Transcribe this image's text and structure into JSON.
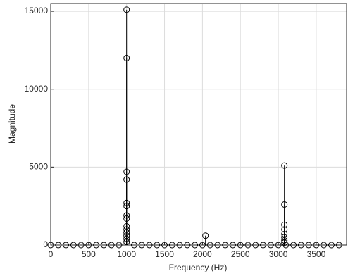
{
  "chart_data": {
    "type": "stem",
    "xlabel": "Frequency (Hz)",
    "ylabel": "Magnitude",
    "x": [
      0,
      100,
      200,
      300,
      400,
      500,
      600,
      700,
      800,
      900,
      1000,
      1000,
      1000,
      1000,
      1000,
      1000,
      1000,
      1000,
      1000,
      1000,
      1000,
      1000,
      1000,
      1000,
      1100,
      1200,
      1300,
      1400,
      1500,
      1600,
      1700,
      1800,
      1900,
      2000,
      2040,
      2100,
      2200,
      2300,
      2400,
      2500,
      2600,
      2700,
      2800,
      2900,
      3000,
      3080,
      3080,
      3080,
      3080,
      3080,
      3080,
      3080,
      3080,
      3100,
      3200,
      3300,
      3400,
      3500,
      3600,
      3700,
      3800
    ],
    "values": [
      0,
      0,
      0,
      0,
      0,
      0,
      0,
      0,
      0,
      0,
      15100,
      12000,
      4700,
      4200,
      2700,
      2500,
      1900,
      1700,
      1200,
      1000,
      800,
      600,
      400,
      200,
      0,
      0,
      0,
      0,
      0,
      0,
      0,
      0,
      0,
      0,
      600,
      0,
      0,
      0,
      0,
      0,
      0,
      0,
      0,
      0,
      0,
      5100,
      2600,
      1300,
      1000,
      700,
      500,
      300,
      150,
      0,
      0,
      0,
      0,
      0,
      0,
      0,
      0
    ],
    "color": "#000000",
    "xlim": [
      0,
      3900
    ],
    "xticks": [
      0,
      500,
      1000,
      1500,
      2000,
      2500,
      3000,
      3500
    ],
    "ylim": [
      0,
      15500
    ],
    "yticks": [
      0,
      5000,
      10000,
      15000
    ],
    "grid": true
  }
}
